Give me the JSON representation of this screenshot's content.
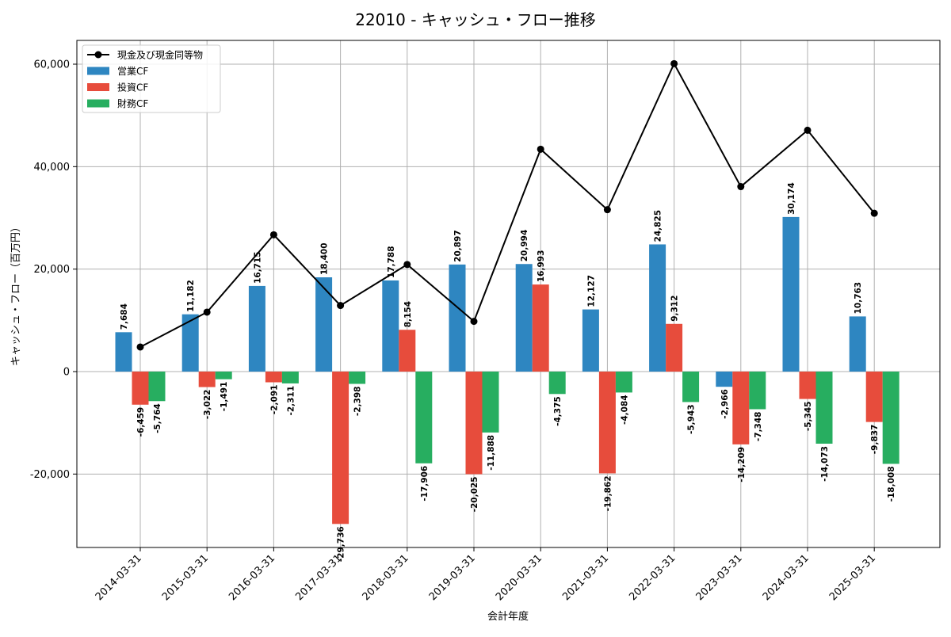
{
  "chart_data": {
    "type": "bar",
    "title": "22010 - キャッシュ・フロー推移",
    "xlabel": "会計年度",
    "ylabel": "キャッシュ・フロー（百万円）",
    "ylim": [
      -34000,
      65000
    ],
    "yticks": [
      -20000,
      0,
      20000,
      40000,
      60000
    ],
    "ytick_labels": [
      "-20,000",
      "0",
      "20,000",
      "40,000",
      "60,000"
    ],
    "grid": true,
    "legend_position": "top-left",
    "categories": [
      "2014-03-31",
      "2015-03-31",
      "2016-03-31",
      "2017-03-31",
      "2018-03-31",
      "2019-03-31",
      "2020-03-31",
      "2021-03-31",
      "2022-03-31",
      "2023-03-31",
      "2024-03-31",
      "2025-03-31"
    ],
    "series": [
      {
        "name": "営業CF",
        "type": "bar",
        "color": "#2e86c1",
        "values": [
          7684,
          11182,
          16715,
          18400,
          17788,
          20897,
          20994,
          12127,
          24825,
          -2966,
          30174,
          10763
        ],
        "labels": [
          "7,684",
          "11,182",
          "16,715",
          "18,400",
          "17,788",
          "20,897",
          "20,994",
          "12,127",
          "24,825",
          "-2,966",
          "30,174",
          "10,763"
        ]
      },
      {
        "name": "投資CF",
        "type": "bar",
        "color": "#e74c3c",
        "values": [
          -6459,
          -3022,
          -2091,
          -29736,
          8154,
          -20025,
          16993,
          -19862,
          9312,
          -14209,
          -5345,
          -9837
        ],
        "labels": [
          "-6,459",
          "-3,022",
          "-2,091",
          "-29,736",
          "8,154",
          "-20,025",
          "16,993",
          "-19,862",
          "9,312",
          "-14,209",
          "-5,345",
          "-9,837"
        ]
      },
      {
        "name": "財務CF",
        "type": "bar",
        "color": "#27ae60",
        "values": [
          -5764,
          -1491,
          -2311,
          -2398,
          -17906,
          -11888,
          -4375,
          -4084,
          -5943,
          -7348,
          -14073,
          -18008
        ],
        "labels": [
          "-5,764",
          "-1,491",
          "-2,311",
          "-2,398",
          "-17,906",
          "-11,888",
          "-4,375",
          "-4,084",
          "-5,943",
          "-7,348",
          "-14,073",
          "-18,008"
        ]
      },
      {
        "name": "現金及び現金同等物",
        "type": "line",
        "color": "#000000",
        "values": [
          4800,
          11600,
          26700,
          12900,
          20900,
          9800,
          43400,
          31600,
          60100,
          36100,
          47100,
          30900
        ]
      }
    ]
  }
}
